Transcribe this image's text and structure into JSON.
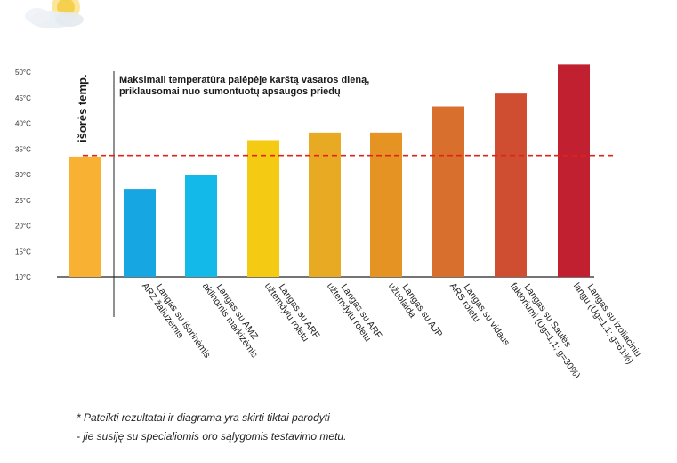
{
  "chart_data": {
    "type": "bar",
    "title": "Maksimali temperatūra palėpėje karštą vasaros dieną, priklausomai nuo sumontuotų apsaugos priedų",
    "xlabel": "",
    "ylabel": "",
    "ylim": [
      10,
      50
    ],
    "y_ticks": [
      "50°C",
      "45°C",
      "40°C",
      "35°C",
      "30°C",
      "25°C",
      "20°C",
      "15°C",
      "10°C"
    ],
    "y_tick_values": [
      50,
      45,
      40,
      35,
      30,
      25,
      20,
      15,
      10
    ],
    "categories": [
      "",
      "Langas su išorinėmis ARZ žaliuzėmis",
      "Langas su AMZ aklinomis markizėmis",
      "Langas su ARF užtemdytu roletu",
      "Langas su ARF užtemdytu roletu",
      "Langas su AJP užuolaida",
      "Langas su vidaus ARS roletu",
      "Langas su Saulės faktoriumi (Ug=1,1; g=30%)",
      "Langas su izoliaciniu langu (Ug=1,1; g=61%)"
    ],
    "values": [
      33.5,
      27.2,
      30.0,
      36.7,
      38.2,
      38.2,
      43.3,
      45.8,
      51.5
    ],
    "colors": [
      "#f8b133",
      "#16a6e1",
      "#13b9e8",
      "#f4ca12",
      "#e8aa23",
      "#e59323",
      "#d86f2d",
      "#cf4e32",
      "#c0202f"
    ],
    "reference_line": {
      "label": "išorės temp.",
      "value": 33.7,
      "color": "#e2231a",
      "style": "dashed"
    },
    "grid": false,
    "legend": "none"
  },
  "footnote": {
    "line1": "* Pateikti rezultatai ir diagrama yra skirti tiktai parodyti",
    "line2": "- jie susiję su specialiomis oro sąlygomis testavimo metu."
  },
  "decoration": {
    "icon": "sun-cloud-icon"
  }
}
